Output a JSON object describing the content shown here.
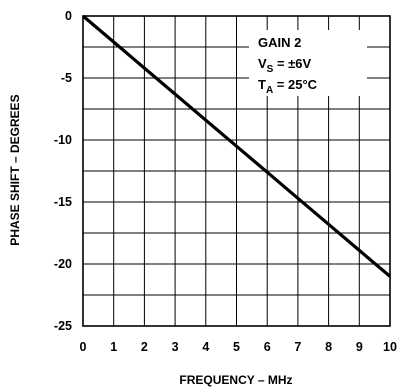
{
  "chart_data": {
    "type": "line",
    "xlabel": "FREQUENCY – MHz",
    "ylabel": "PHASE SHIFT – DEGREES",
    "xlim": [
      0,
      10
    ],
    "ylim": [
      -25,
      0
    ],
    "x_ticks": [
      0,
      1,
      2,
      3,
      4,
      5,
      6,
      7,
      8,
      9,
      10
    ],
    "y_ticks": [
      0,
      -5,
      -10,
      -15,
      -20,
      -25
    ],
    "grid": true,
    "series": [
      {
        "x": [
          0,
          1,
          2,
          3,
          4,
          5,
          6,
          7,
          8,
          9,
          10
        ],
        "y": [
          0,
          -2.1,
          -4.2,
          -6.3,
          -8.4,
          -10.5,
          -12.6,
          -14.7,
          -16.8,
          -18.9,
          -21.0
        ],
        "color": "#000000"
      }
    ],
    "annotations": {
      "gain": "GAIN 2",
      "vs_main": "V",
      "vs_sub": "S",
      "vs_value": " = ±6V",
      "ta_main": "T",
      "ta_sub": "A",
      "ta_value": " = 25°C"
    }
  }
}
